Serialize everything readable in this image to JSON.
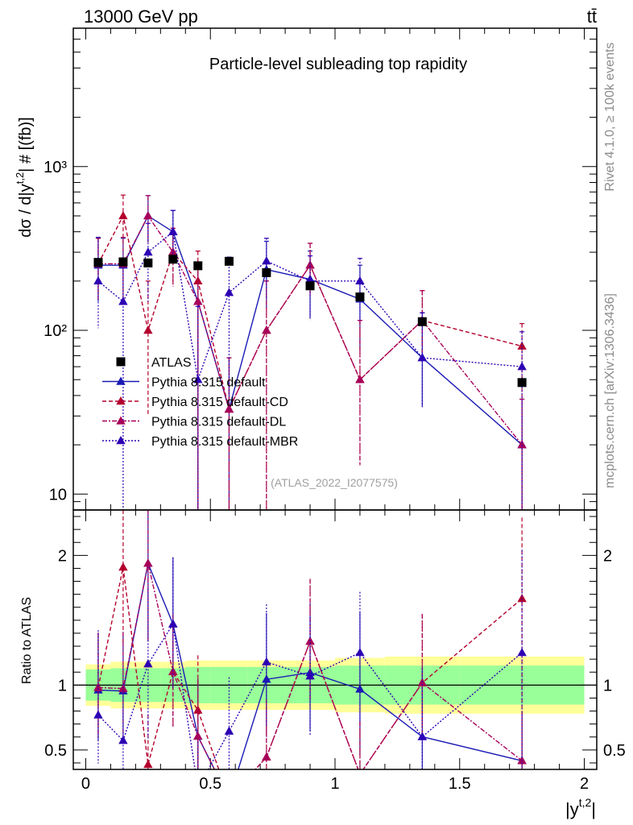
{
  "header": {
    "process": "13000 GeV pp",
    "final_state": "tt̄"
  },
  "side_labels": {
    "rivet": "Rivet 4.1.0, ≥ 100k events",
    "mcplots": "mcplots.cern.ch [arXiv:1306.3436]"
  },
  "chart_data": {
    "type": "scatter",
    "title": "Particle-level subleading top rapidity",
    "analysis_label": "(ATLAS_2022_I2077575)",
    "main": {
      "ylabel_parts": {
        "lead": "dσ / d|y",
        "sup": "t,2",
        "tail": "| # [(fb)]"
      },
      "yscale": "log",
      "ylim": [
        8,
        7000
      ],
      "ytick_labels": [
        {
          "value": 10,
          "text": "10"
        },
        {
          "value": 100,
          "text": "10²"
        },
        {
          "value": 1000,
          "text": "10³"
        }
      ]
    },
    "ratio": {
      "ylabel": "Ratio to ATLAS",
      "ylim": [
        0.35,
        2.35
      ],
      "ytick_labels": [
        {
          "value": 0.5,
          "text": "0.5"
        },
        {
          "value": 1,
          "text": "1"
        },
        {
          "value": 2,
          "text": "2"
        }
      ]
    },
    "xlabel_parts": {
      "lead": "|y",
      "sup": "t,2",
      "tail": "|"
    },
    "xlim": [
      -0.05,
      2.05
    ],
    "xtick_labels": [
      {
        "value": 0,
        "text": "0"
      },
      {
        "value": 0.5,
        "text": "0.5"
      },
      {
        "value": 1,
        "text": "1"
      },
      {
        "value": 1.5,
        "text": "1.5"
      },
      {
        "value": 2,
        "text": "2"
      }
    ],
    "bins": [
      0,
      0.1,
      0.2,
      0.3,
      0.4,
      0.5,
      0.65,
      0.8,
      1.0,
      1.2,
      1.5,
      2.0
    ],
    "x": [
      0.05,
      0.15,
      0.25,
      0.35,
      0.45,
      0.575,
      0.725,
      0.9,
      1.1,
      1.35,
      1.75
    ],
    "data": {
      "name": "ATLAS",
      "values": [
        260,
        262,
        258,
        272,
        248,
        264,
        225,
        187,
        160,
        113,
        48
      ],
      "ratio_band_inner": [
        0.12,
        0.13,
        0.13,
        0.13,
        0.14,
        0.14,
        0.14,
        0.14,
        0.15,
        0.15,
        0.15
      ],
      "ratio_band_outer": [
        0.16,
        0.18,
        0.18,
        0.18,
        0.19,
        0.19,
        0.19,
        0.19,
        0.21,
        0.22,
        0.22
      ]
    },
    "series": [
      {
        "name": "Pythia 8.315 default",
        "color": "#1a1ab4",
        "dash": "",
        "values": [
          250,
          250,
          500,
          400,
          150,
          33,
          235,
          205,
          155,
          68,
          20
        ],
        "err_hi": [
          115,
          115,
          165,
          140,
          110,
          35,
          115,
          100,
          95,
          60,
          18
        ],
        "err_lo": [
          100,
          100,
          155,
          135,
          145,
          33,
          100,
          85,
          80,
          34,
          20
        ]
      },
      {
        "name": "Pythia 8.315 default-CD",
        "color": "#b4002d",
        "dash": "5,3",
        "values": [
          255,
          500,
          100,
          300,
          200,
          33,
          100,
          250,
          50,
          115,
          80
        ],
        "err_hi": [
          110,
          170,
          100,
          120,
          105,
          35,
          100,
          90,
          65,
          60,
          30
        ],
        "err_lo": [
          100,
          160,
          70,
          115,
          195,
          33,
          100,
          85,
          35,
          50,
          80
        ]
      },
      {
        "name": "Pythia 8.315 default-DL",
        "color": "#a8005a",
        "dash": "6,2,2,2",
        "values": [
          255,
          255,
          500,
          300,
          150,
          33,
          100,
          250,
          50,
          115,
          20
        ],
        "err_hi": [
          110,
          115,
          165,
          120,
          110,
          35,
          100,
          90,
          65,
          60,
          18
        ],
        "err_lo": [
          100,
          100,
          155,
          115,
          145,
          33,
          100,
          85,
          35,
          50,
          20
        ]
      },
      {
        "name": "Pythia 8.315 default-MBR",
        "color": "#2d00b4",
        "dash": "2,2",
        "values": [
          200,
          150,
          300,
          400,
          50,
          170,
          265,
          200,
          200,
          68,
          60
        ],
        "err_hi": [
          170,
          115,
          150,
          140,
          90,
          110,
          100,
          85,
          75,
          60,
          38
        ],
        "err_lo": [
          97,
          150,
          150,
          135,
          50,
          130,
          110,
          85,
          85,
          34,
          60
        ]
      }
    ]
  }
}
